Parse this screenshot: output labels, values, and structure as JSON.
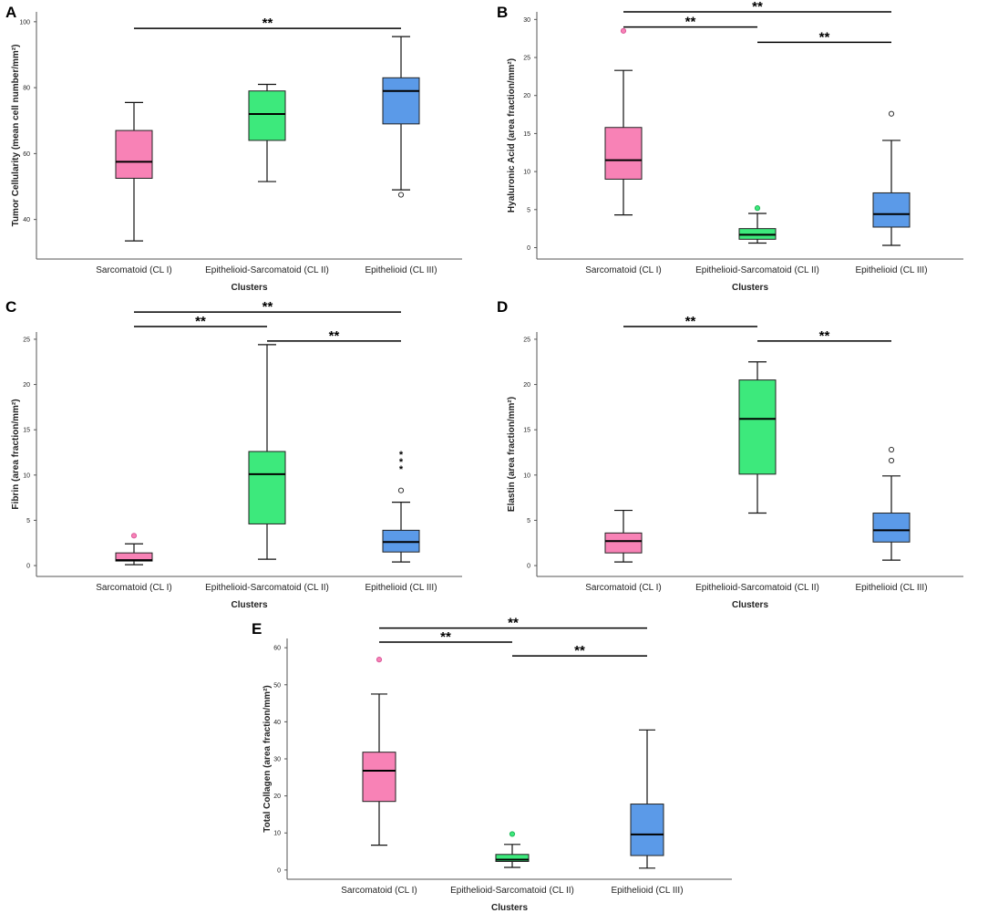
{
  "chart_data": [
    {
      "panel": "A",
      "type": "box",
      "title": "",
      "xlabel": "Clusters",
      "ylabel": "Tumor Cellularity (mean cell number/mm²)",
      "ylim": [
        28,
        103
      ],
      "yticks": [
        40,
        60,
        80,
        100
      ],
      "categories": [
        "Sarcomatoid (CL I)",
        "Epithelioid-Sarcomatoid (CL II)",
        "Epithelioid (CL III)"
      ],
      "colors": [
        "#f882b6",
        "#3de97c",
        "#5b9ae8"
      ],
      "boxes": [
        {
          "whisker_low": 33.5,
          "q1": 52.5,
          "median": 57.5,
          "q3": 67,
          "whisker_high": 75.5,
          "outliers": [],
          "extremes": []
        },
        {
          "whisker_low": 51.5,
          "q1": 64,
          "median": 72,
          "q3": 79,
          "whisker_high": 81,
          "outliers": [],
          "extremes": []
        },
        {
          "whisker_low": 49,
          "q1": 69,
          "median": 79,
          "q3": 83,
          "whisker_high": 95.5,
          "outliers": [
            47.5
          ],
          "extremes": []
        }
      ],
      "significance": [
        {
          "from": 0,
          "to": 2,
          "label": "**",
          "y": 98
        }
      ]
    },
    {
      "panel": "B",
      "type": "box",
      "title": "",
      "xlabel": "Clusters",
      "ylabel": "Hyaluronic Acid (area fraction/mm²)",
      "ylim": [
        -1.5,
        31
      ],
      "yticks": [
        0,
        5,
        10,
        15,
        20,
        25,
        30
      ],
      "categories": [
        "Sarcomatoid (CL I)",
        "Epithelioid-Sarcomatoid (CL II)",
        "Epithelioid (CL III)"
      ],
      "colors": [
        "#f882b6",
        "#3de97c",
        "#5b9ae8"
      ],
      "boxes": [
        {
          "whisker_low": 4.3,
          "q1": 9,
          "median": 11.5,
          "q3": 15.8,
          "whisker_high": 23.3,
          "outliers": [
            28.5
          ],
          "extremes": []
        },
        {
          "whisker_low": 0.6,
          "q1": 1.1,
          "median": 1.7,
          "q3": 2.5,
          "whisker_high": 4.5,
          "outliers": [
            5.2
          ],
          "extremes": []
        },
        {
          "whisker_low": 0.3,
          "q1": 2.7,
          "median": 4.4,
          "q3": 7.2,
          "whisker_high": 14.1,
          "outliers": [
            17.6
          ],
          "extremes": []
        }
      ],
      "significance": [
        {
          "from": 0,
          "to": 2,
          "label": "**",
          "y": 31
        },
        {
          "from": 0,
          "to": 1,
          "label": "**",
          "y": 29
        },
        {
          "from": 1,
          "to": 2,
          "label": "**",
          "y": 27
        }
      ]
    },
    {
      "panel": "C",
      "type": "box",
      "title": "",
      "xlabel": "Clusters",
      "ylabel": "Fibrin (area fraction/mm²)",
      "ylim": [
        -1.2,
        25.8
      ],
      "yticks": [
        0,
        5,
        10,
        15,
        20,
        25
      ],
      "categories": [
        "Sarcomatoid (CL I)",
        "Epithelioid-Sarcomatoid (CL II)",
        "Epithelioid (CL III)"
      ],
      "colors": [
        "#f882b6",
        "#3de97c",
        "#5b9ae8"
      ],
      "boxes": [
        {
          "whisker_low": 0.1,
          "q1": 0.5,
          "median": 0.6,
          "q3": 1.4,
          "whisker_high": 2.4,
          "outliers": [
            3.3
          ],
          "extremes": []
        },
        {
          "whisker_low": 0.7,
          "q1": 4.6,
          "median": 10.1,
          "q3": 12.6,
          "whisker_high": 24.4,
          "outliers": [],
          "extremes": []
        },
        {
          "whisker_low": 0.4,
          "q1": 1.5,
          "median": 2.6,
          "q3": 3.9,
          "whisker_high": 7,
          "outliers": [
            8.3
          ],
          "extremes": [
            10.8,
            11.6,
            12.4
          ]
        }
      ],
      "significance": [
        {
          "from": 0,
          "to": 2,
          "label": "**",
          "y": 28
        },
        {
          "from": 0,
          "to": 1,
          "label": "**",
          "y": 26.4
        },
        {
          "from": 1,
          "to": 2,
          "label": "**",
          "y": 24.8
        }
      ]
    },
    {
      "panel": "D",
      "type": "box",
      "title": "",
      "xlabel": "Clusters",
      "ylabel": "Elastin (area fraction/mm²)",
      "ylim": [
        -1.2,
        25.8
      ],
      "yticks": [
        0,
        5,
        10,
        15,
        20,
        25
      ],
      "categories": [
        "Sarcomatoid (CL I)",
        "Epithelioid-Sarcomatoid (CL II)",
        "Epithelioid (CL III)"
      ],
      "colors": [
        "#f882b6",
        "#3de97c",
        "#5b9ae8"
      ],
      "boxes": [
        {
          "whisker_low": 0.4,
          "q1": 1.4,
          "median": 2.7,
          "q3": 3.6,
          "whisker_high": 6.1,
          "outliers": [],
          "extremes": []
        },
        {
          "whisker_low": 5.8,
          "q1": 10.1,
          "median": 16.2,
          "q3": 20.5,
          "whisker_high": 22.5,
          "outliers": [],
          "extremes": []
        },
        {
          "whisker_low": 0.6,
          "q1": 2.6,
          "median": 3.9,
          "q3": 5.8,
          "whisker_high": 9.9,
          "outliers": [
            11.6,
            12.8
          ],
          "extremes": []
        }
      ],
      "significance": [
        {
          "from": 0,
          "to": 1,
          "label": "**",
          "y": 26.4
        },
        {
          "from": 1,
          "to": 2,
          "label": "**",
          "y": 24.8
        }
      ]
    },
    {
      "panel": "E",
      "type": "box",
      "title": "",
      "xlabel": "Clusters",
      "ylabel": "Total Collagen (area fraction/mm²)",
      "ylim": [
        -2.5,
        62.5
      ],
      "yticks": [
        0,
        10,
        20,
        30,
        40,
        50,
        60
      ],
      "categories": [
        "Sarcomatoid (CL I)",
        "Epithelioid-Sarcomatoid (CL II)",
        "Epithelioid (CL III)"
      ],
      "colors": [
        "#f882b6",
        "#3de97c",
        "#5b9ae8"
      ],
      "boxes": [
        {
          "whisker_low": 6.7,
          "q1": 18.5,
          "median": 26.8,
          "q3": 31.8,
          "whisker_high": 47.5,
          "outliers": [
            56.8
          ],
          "extremes": []
        },
        {
          "whisker_low": 0.7,
          "q1": 2.3,
          "median": 2.8,
          "q3": 4.2,
          "whisker_high": 6.9,
          "outliers": [
            9.7
          ],
          "extremes": []
        },
        {
          "whisker_low": 0.5,
          "q1": 3.9,
          "median": 9.6,
          "q3": 17.8,
          "whisker_high": 37.8,
          "outliers": [],
          "extremes": []
        }
      ],
      "significance": [
        {
          "from": 0,
          "to": 2,
          "label": "**",
          "y": 65.3
        },
        {
          "from": 0,
          "to": 1,
          "label": "**",
          "y": 61.5
        },
        {
          "from": 1,
          "to": 2,
          "label": "**",
          "y": 57.8
        }
      ]
    }
  ]
}
